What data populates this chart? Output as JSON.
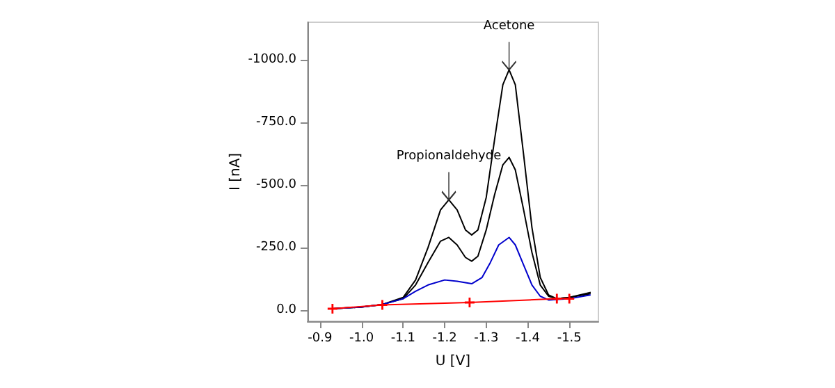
{
  "chart_data": {
    "type": "line",
    "xlabel": "U [V]",
    "ylabel": "I [nA]",
    "xlim": [
      -0.87,
      -1.57
    ],
    "ylim": [
      45,
      -1150
    ],
    "xticks": [
      -0.9,
      {
        "value": -1.0,
        "label": "-1.0"
      },
      -1.1,
      -1.2,
      -1.3,
      -1.4,
      -1.5
    ],
    "yticks": [
      {
        "value": 0,
        "label": "0.0"
      },
      {
        "value": -250,
        "label": "-250.0"
      },
      {
        "value": -500,
        "label": "-500.0"
      },
      {
        "value": -750,
        "label": "-750.0"
      },
      {
        "value": -1000,
        "label": "-1000.0"
      }
    ],
    "grid": false,
    "marker": "none",
    "line_style": "solid",
    "annotations": [
      {
        "text": "Acetone",
        "x": -1.355,
        "y": -960
      },
      {
        "text": "Propionaldehyde",
        "x": -1.21,
        "y": -440
      }
    ],
    "series": [
      {
        "color": "#000000",
        "x": [
          -0.93,
          -1.0,
          -1.05,
          -1.1,
          -1.13,
          -1.16,
          -1.19,
          -1.21,
          -1.23,
          -1.25,
          -1.265,
          -1.28,
          -1.3,
          -1.32,
          -1.34,
          -1.355,
          -1.37,
          -1.39,
          -1.41,
          -1.43,
          -1.45,
          -1.47,
          -1.5,
          -1.55
        ],
        "values": [
          -5,
          -12,
          -22,
          -50,
          -120,
          -250,
          -400,
          -440,
          -400,
          -320,
          -300,
          -320,
          -450,
          -680,
          -900,
          -960,
          -900,
          -620,
          -330,
          -130,
          -60,
          -45,
          -50,
          -70
        ]
      },
      {
        "color": "#000000",
        "x": [
          -0.93,
          -1.0,
          -1.05,
          -1.1,
          -1.13,
          -1.16,
          -1.19,
          -1.21,
          -1.23,
          -1.25,
          -1.265,
          -1.28,
          -1.3,
          -1.32,
          -1.34,
          -1.355,
          -1.37,
          -1.39,
          -1.41,
          -1.43,
          -1.45,
          -1.47,
          -1.5,
          -1.55
        ],
        "values": [
          -5,
          -12,
          -22,
          -45,
          -100,
          -190,
          -275,
          -290,
          -260,
          -210,
          -195,
          -215,
          -320,
          -460,
          -580,
          -610,
          -560,
          -400,
          -230,
          -100,
          -55,
          -45,
          -50,
          -65
        ]
      },
      {
        "color": "#0000cc",
        "x": [
          -0.93,
          -1.0,
          -1.05,
          -1.1,
          -1.13,
          -1.16,
          -1.2,
          -1.23,
          -1.265,
          -1.29,
          -1.31,
          -1.33,
          -1.355,
          -1.37,
          -1.39,
          -1.41,
          -1.43,
          -1.45,
          -1.5,
          -1.55
        ],
        "values": [
          -5,
          -12,
          -22,
          -45,
          -75,
          -100,
          -120,
          -115,
          -105,
          -130,
          -190,
          -260,
          -290,
          -260,
          -180,
          -100,
          -55,
          -40,
          -45,
          -60
        ]
      },
      {
        "color": "#ff0000",
        "marker": "cross",
        "x": [
          -0.93,
          -1.05,
          -1.26,
          -1.47,
          -1.5
        ],
        "values": [
          -5,
          -20,
          -30,
          -45,
          -45
        ]
      }
    ]
  }
}
